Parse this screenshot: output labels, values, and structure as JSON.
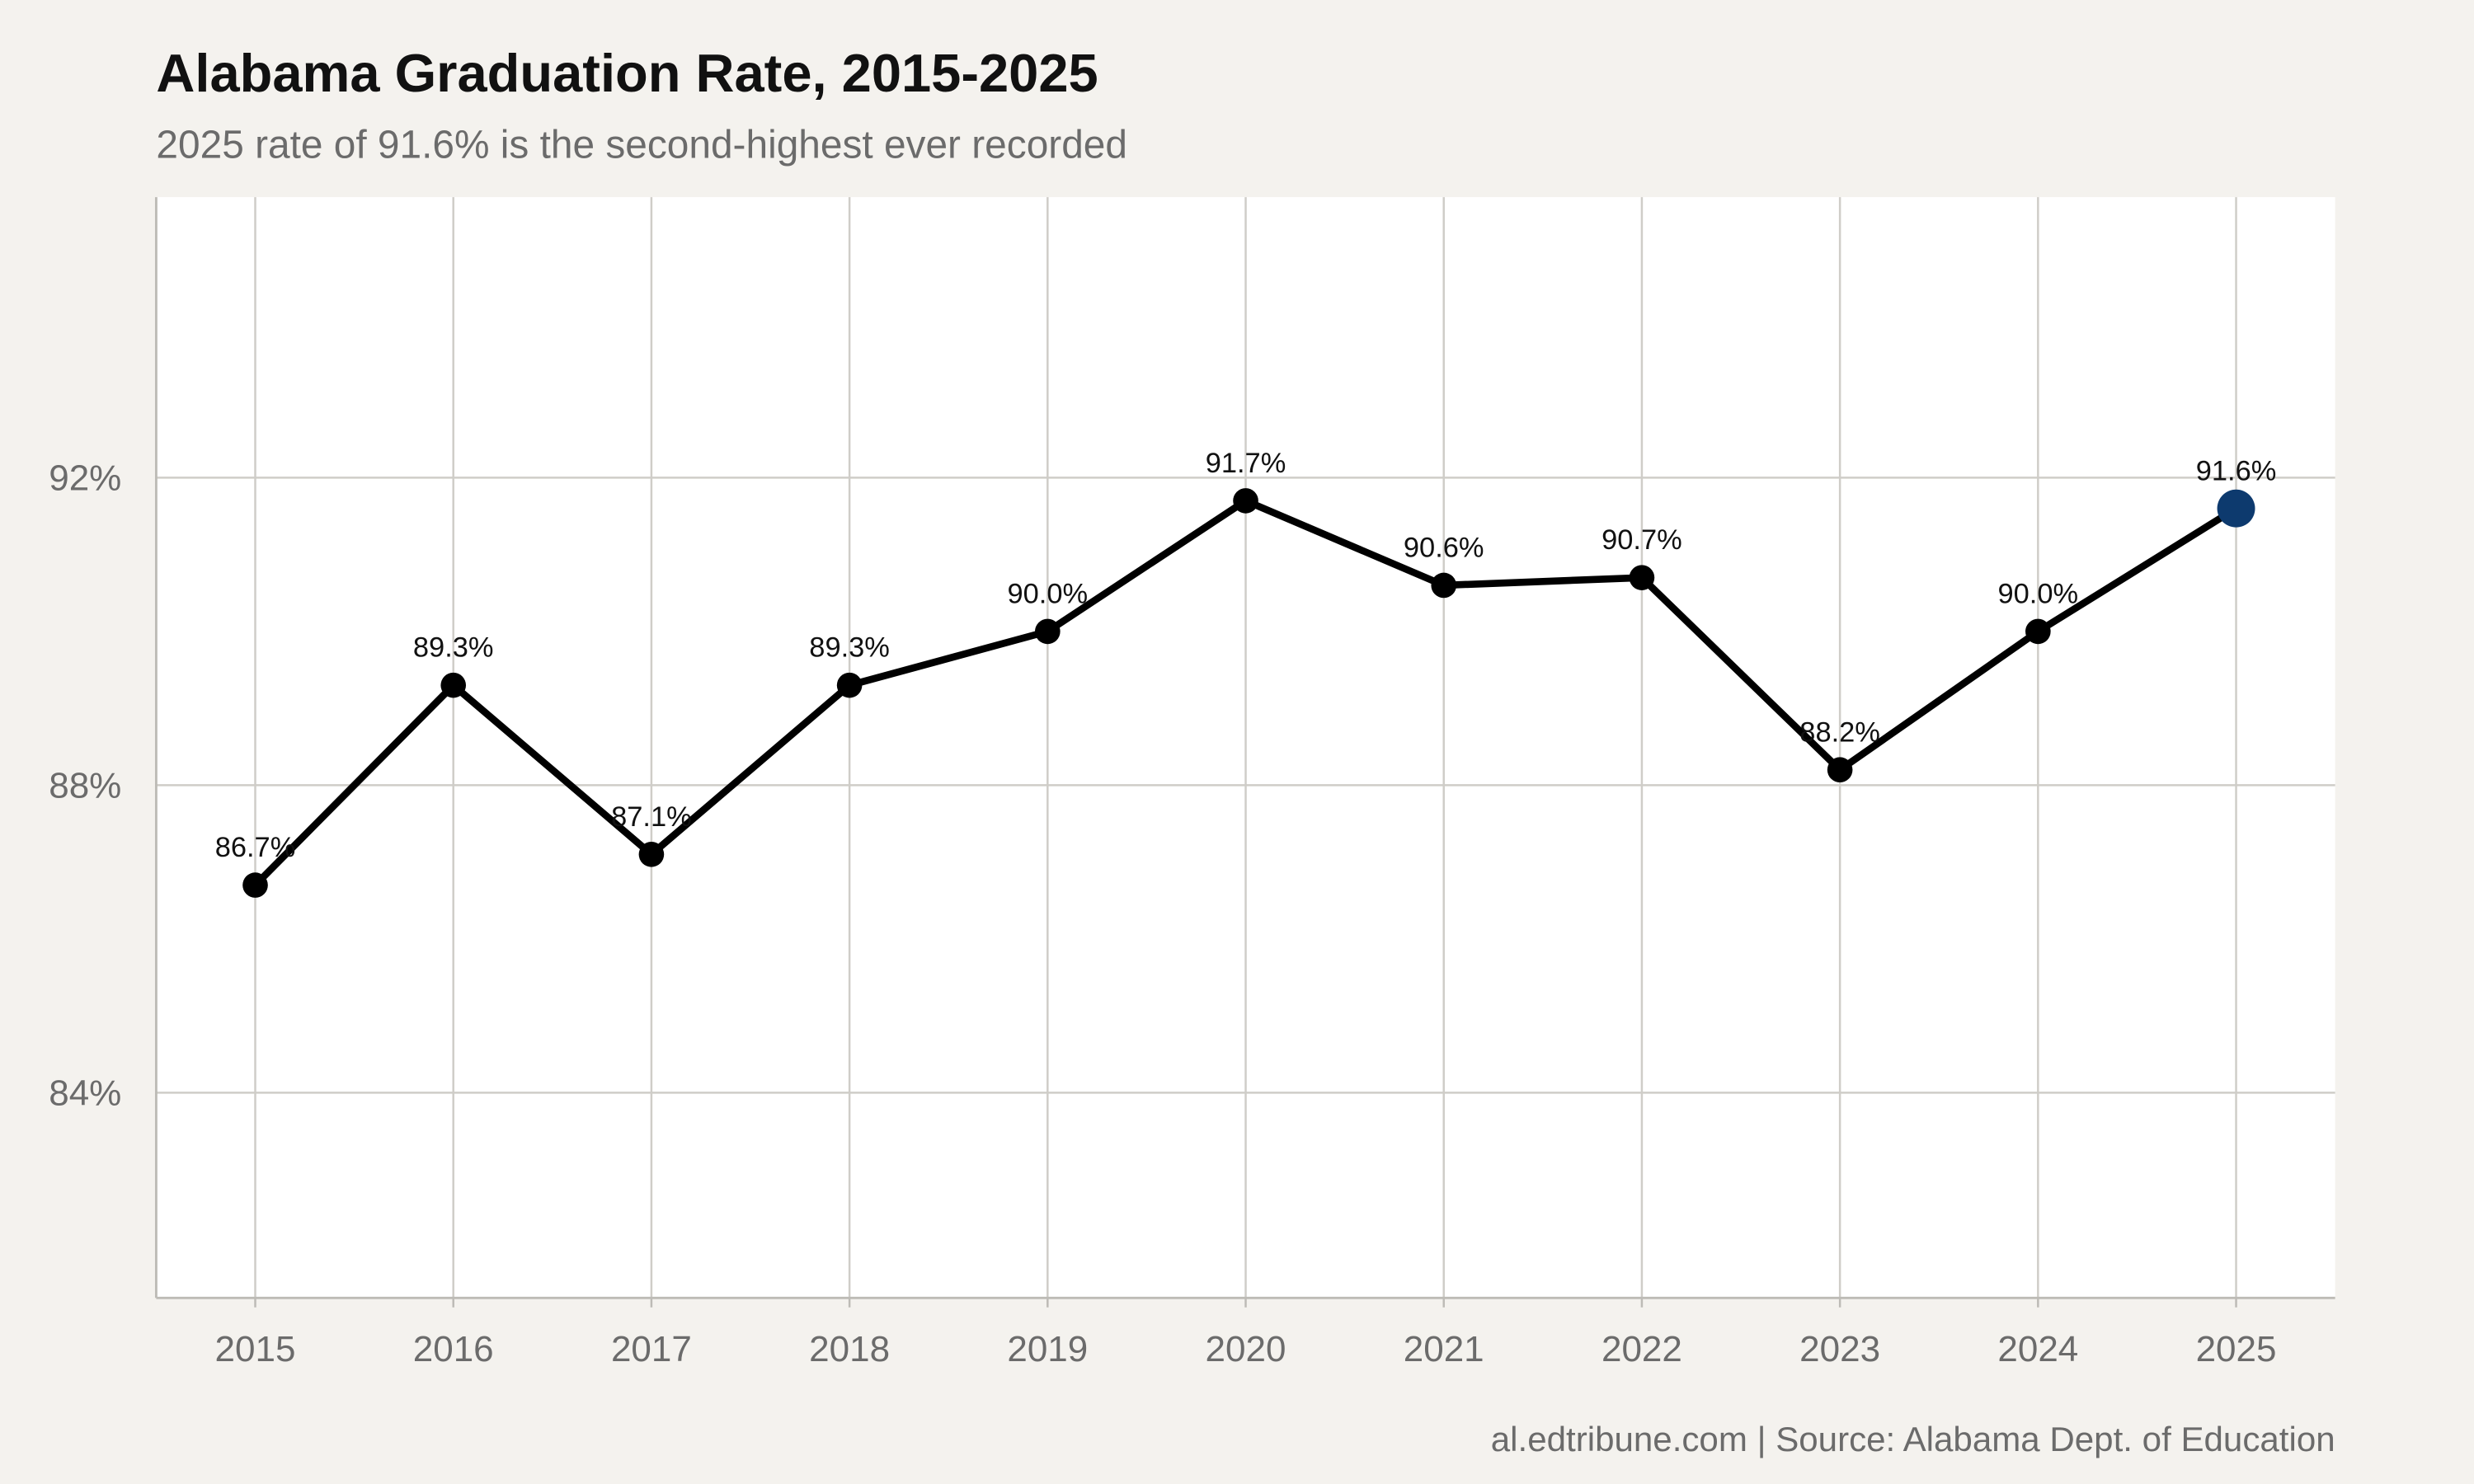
{
  "chart_data": {
    "type": "line",
    "title": "Alabama Graduation Rate, 2015-2025",
    "subtitle": "2025 rate of 91.6% is the second-highest ever recorded",
    "caption": "al.edtribune.com | Source: Alabama Dept. of Education",
    "x": [
      2015,
      2016,
      2017,
      2018,
      2019,
      2020,
      2021,
      2022,
      2023,
      2024,
      2025
    ],
    "series": [
      {
        "color": "#000000",
        "values": [
          86.7,
          89.3,
          87.1,
          89.3,
          90.0,
          91.7,
          90.6,
          90.7,
          88.2,
          90.0,
          91.6
        ],
        "value_labels": [
          "86.7%",
          "89.3%",
          "87.1%",
          "89.3%",
          "90.0%",
          "91.7%",
          "90.6%",
          "90.7%",
          "88.2%",
          "90.0%",
          "91.6%"
        ],
        "marker_colors": [
          "#000000",
          "#000000",
          "#000000",
          "#000000",
          "#000000",
          "#000000",
          "#000000",
          "#000000",
          "#000000",
          "#000000",
          "#0d3a6e"
        ]
      }
    ],
    "xlim": [
      2014.5,
      2025.5
    ],
    "xticks": [
      2015,
      2016,
      2017,
      2018,
      2019,
      2020,
      2021,
      2022,
      2023,
      2024,
      2025
    ],
    "ylim": [
      81.33,
      95.65
    ],
    "yticks": [
      {
        "value": 84,
        "label": "84%"
      },
      {
        "value": 88,
        "label": "88%"
      },
      {
        "value": 92,
        "label": "92%"
      }
    ],
    "grid": true
  }
}
